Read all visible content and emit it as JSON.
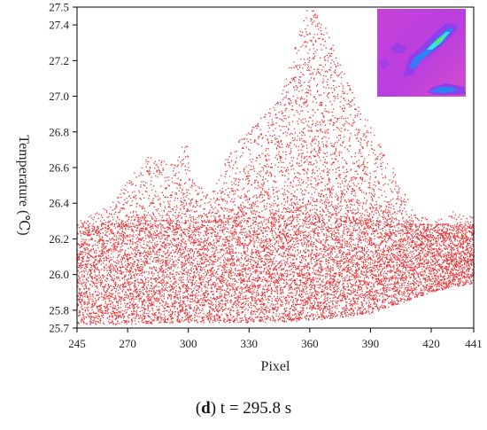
{
  "chart_data": {
    "type": "scatter",
    "xlabel": "Pixel",
    "ylabel": "Temperature (℃)",
    "xlim": [
      245,
      441
    ],
    "ylim": [
      25.7,
      27.5
    ],
    "x_ticks": [
      245,
      270,
      300,
      330,
      360,
      390,
      420,
      441
    ],
    "y_ticks": [
      25.7,
      25.8,
      26.0,
      26.2,
      26.4,
      26.6,
      26.8,
      27.0,
      27.2,
      27.4,
      27.5
    ],
    "y_tick_labels": [
      "25.7",
      "25.8",
      "26.0",
      "26.2",
      "26.4",
      "26.6",
      "26.8",
      "27.0",
      "27.2",
      "27.4",
      "27.5"
    ],
    "grid": false,
    "series": [
      {
        "color": "#e8383b",
        "marker": "dot",
        "band_core": [
          {
            "x": 245,
            "lo": 25.72,
            "hi": 26.28
          },
          {
            "x": 270,
            "lo": 25.72,
            "hi": 26.3
          },
          {
            "x": 300,
            "lo": 25.73,
            "hi": 26.3
          },
          {
            "x": 330,
            "lo": 25.73,
            "hi": 26.32
          },
          {
            "x": 360,
            "lo": 25.74,
            "hi": 26.32
          },
          {
            "x": 390,
            "lo": 25.78,
            "hi": 26.3
          },
          {
            "x": 420,
            "lo": 25.9,
            "hi": 26.28
          },
          {
            "x": 441,
            "lo": 25.95,
            "hi": 26.28
          }
        ],
        "upper_envelope": [
          {
            "x": 245,
            "y": 26.3
          },
          {
            "x": 260,
            "y": 26.38
          },
          {
            "x": 272,
            "y": 26.55
          },
          {
            "x": 280,
            "y": 26.66
          },
          {
            "x": 288,
            "y": 26.64
          },
          {
            "x": 292,
            "y": 26.62
          },
          {
            "x": 296,
            "y": 26.72
          },
          {
            "x": 299,
            "y": 26.78
          },
          {
            "x": 303,
            "y": 26.52
          },
          {
            "x": 310,
            "y": 26.45
          },
          {
            "x": 320,
            "y": 26.68
          },
          {
            "x": 330,
            "y": 26.82
          },
          {
            "x": 338,
            "y": 26.9
          },
          {
            "x": 346,
            "y": 27.0
          },
          {
            "x": 352,
            "y": 27.25
          },
          {
            "x": 358,
            "y": 27.48
          },
          {
            "x": 362,
            "y": 27.48
          },
          {
            "x": 368,
            "y": 27.4
          },
          {
            "x": 376,
            "y": 27.15
          },
          {
            "x": 386,
            "y": 26.92
          },
          {
            "x": 396,
            "y": 26.7
          },
          {
            "x": 404,
            "y": 26.55
          },
          {
            "x": 412,
            "y": 26.35
          },
          {
            "x": 420,
            "y": 26.3
          },
          {
            "x": 432,
            "y": 26.36
          },
          {
            "x": 441,
            "y": 26.33
          }
        ]
      }
    ],
    "inset_image": {
      "kind": "thermal-image",
      "position": "top-right",
      "colors": [
        "#d63cd8",
        "#8a3ef0",
        "#2f7ff5",
        "#3fe0e0",
        "#4ff060"
      ]
    }
  },
  "caption": {
    "label": "d",
    "text": " t = 295.8 s",
    "open_paren": "(",
    "close_paren": ")"
  }
}
